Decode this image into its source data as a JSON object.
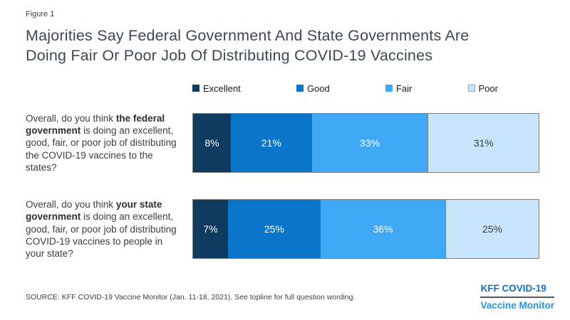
{
  "figure_label": "Figure 1",
  "title": "Majorities Say Federal Government And State Governments Are\nDoing Fair Or Poor Job Of Distributing COVID-19 Vaccines",
  "colors": {
    "excellent": "#0d3a5e",
    "good": "#0a76c9",
    "fair": "#3fa9f8",
    "poor": "#c6e5fb",
    "bar_border": "#808080",
    "title_text": "#3c4858",
    "body_text": "#3d3d3d",
    "logo_blue_dark": "#1272bd",
    "logo_blue_light": "#2094e8"
  },
  "legend": [
    {
      "label": "Excellent",
      "color": "#0d3a5e"
    },
    {
      "label": "Good",
      "color": "#0a76c9"
    },
    {
      "label": "Fair",
      "color": "#3fa9f8"
    },
    {
      "label": "Poor",
      "color": "#c6e5fb"
    }
  ],
  "chart_data": {
    "type": "bar",
    "orientation": "horizontal",
    "stacked": true,
    "title": "Majorities Say Federal Government And State Governments Are Doing Fair Or Poor Job Of Distributing COVID-19 Vaccines",
    "categories": [
      "Overall, do you think the federal government is doing an excellent, good, fair, or poor job of distributing the COVID-19 vaccines to the states?",
      "Overall, do you think your state government is doing an excellent, good, fair, or poor job of distributing COVID-19 vaccines to people in your state?"
    ],
    "series": [
      {
        "name": "Excellent",
        "values": [
          8,
          7
        ],
        "color": "#0d3a5e"
      },
      {
        "name": "Good",
        "values": [
          21,
          25
        ],
        "color": "#0a76c9"
      },
      {
        "name": "Fair",
        "values": [
          33,
          36
        ],
        "color": "#3fa9f8"
      },
      {
        "name": "Poor",
        "values": [
          31,
          25
        ],
        "color": "#c6e5fb"
      }
    ],
    "value_format": "percent",
    "legend_position": "top",
    "data_labels": true
  },
  "rows": [
    {
      "question": {
        "prefix": "Overall, do you think ",
        "bold": "the federal government",
        "rest": " is doing an excellent, good, fair, or poor job of distributing the COVID-19 vaccines to the states?"
      },
      "segments": [
        {
          "label": "8%",
          "value": 8,
          "color": "#0d3a5e",
          "text_color": "#ffffff"
        },
        {
          "label": "21%",
          "value": 21,
          "color": "#0a76c9",
          "text_color": "#ffffff"
        },
        {
          "label": "33%",
          "value": 33,
          "color": "#3fa9f8",
          "text_color": "#ffffff"
        },
        {
          "label": "31%",
          "value": 31,
          "color": "#c6e5fb",
          "text_color": "#3d3d3d"
        }
      ]
    },
    {
      "question": {
        "prefix": "Overall, do you think ",
        "bold": "your state government",
        "rest": " is doing an excellent, good, fair, or poor job of distributing COVID-19 vaccines to people in your state?"
      },
      "segments": [
        {
          "label": "7%",
          "value": 7,
          "color": "#0d3a5e",
          "text_color": "#ffffff"
        },
        {
          "label": "25%",
          "value": 25,
          "color": "#0a76c9",
          "text_color": "#ffffff"
        },
        {
          "label": "36%",
          "value": 36,
          "color": "#3fa9f8",
          "text_color": "#ffffff"
        },
        {
          "label": "25%",
          "value": 25,
          "color": "#c6e5fb",
          "text_color": "#3d3d3d"
        }
      ]
    }
  ],
  "source": "SOURCE: KFF COVID-19 Vaccine Monitor (Jan. 11-18, 2021). See topline for full question wording.",
  "logo": {
    "line1": "KFF COVID-19",
    "line2": "Vaccine Monitor"
  }
}
